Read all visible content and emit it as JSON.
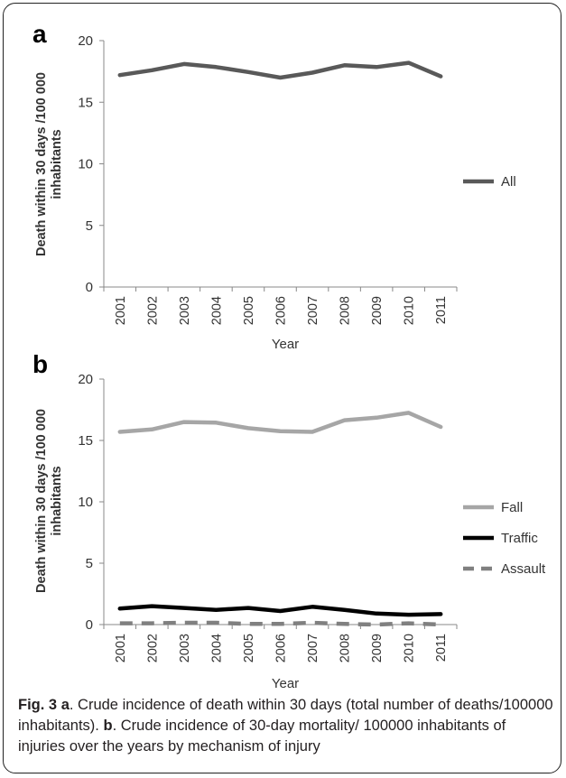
{
  "panels": [
    {
      "panel_label": "a",
      "chart_data": {
        "type": "line",
        "categories": [
          "2001",
          "2002",
          "2003",
          "2004",
          "2005",
          "2006",
          "2007",
          "2008",
          "2009",
          "2010",
          "2011"
        ],
        "series": [
          {
            "name": "All",
            "color": "#595959",
            "dash": false,
            "values": [
              17.2,
              17.6,
              18.1,
              17.85,
              17.45,
              17.0,
              17.4,
              18.0,
              17.85,
              18.2,
              17.1
            ]
          }
        ],
        "xlabel": "Year",
        "ylabel": "Death within 30 days /100 000 inhabitants",
        "ylim": [
          0,
          20
        ],
        "yticks": [
          0,
          5,
          10,
          15,
          20
        ],
        "grid": false,
        "legend_position": "right"
      }
    },
    {
      "panel_label": "b",
      "chart_data": {
        "type": "line",
        "categories": [
          "2001",
          "2002",
          "2003",
          "2004",
          "2005",
          "2006",
          "2007",
          "2008",
          "2009",
          "2010",
          "2011"
        ],
        "series": [
          {
            "name": "Fall",
            "color": "#a6a6a6",
            "dash": false,
            "values": [
              15.7,
              15.9,
              16.5,
              16.45,
              16.0,
              15.75,
              15.7,
              16.65,
              16.85,
              17.25,
              16.1
            ]
          },
          {
            "name": "Traffic",
            "color": "#000000",
            "dash": false,
            "values": [
              1.3,
              1.5,
              1.35,
              1.2,
              1.35,
              1.1,
              1.45,
              1.2,
              0.9,
              0.8,
              0.85
            ]
          },
          {
            "name": "Assault",
            "color": "#808080",
            "dash": true,
            "values": [
              0.1,
              0.1,
              0.15,
              0.15,
              0.05,
              0.05,
              0.15,
              0.05,
              0.0,
              0.1,
              0.0
            ]
          }
        ],
        "xlabel": "Year",
        "ylabel": "Death within 30 days /100 000 inhabitants",
        "ylim": [
          0,
          20
        ],
        "yticks": [
          0,
          5,
          10,
          15,
          20
        ],
        "grid": false,
        "legend_position": "right"
      }
    }
  ],
  "caption": {
    "fig_label": "Fig. 3",
    "part_a_label": "a",
    "part_a_text": ". Crude incidence of death within 30 days (total number of deaths/100000 inhabitants). ",
    "part_b_label": "b",
    "part_b_text": ". Crude incidence of 30-day mortality/ 100000 inhabitants of injuries over the years by mechanism of injury"
  }
}
